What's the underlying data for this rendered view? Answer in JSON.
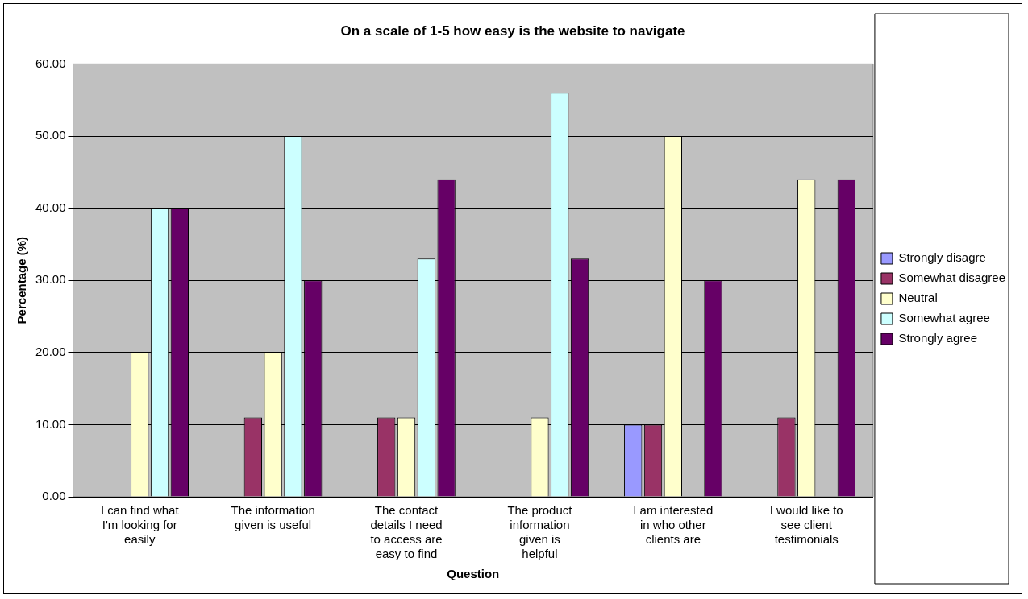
{
  "chart_data": {
    "type": "bar",
    "title": "On a scale of 1-5 how easy is the website to navigate",
    "xlabel": "Question",
    "ylabel": "Percentage (%)",
    "categories": [
      "I can find what I'm looking for easily",
      "The information given is useful",
      "The contact details I need to access are easy to find",
      "The product information given is helpful",
      "I am interested in who other clients are",
      "I would like to see client testimonials"
    ],
    "series": [
      {
        "name": "Strongly disagre",
        "color": "#9999ff",
        "values": [
          0,
          0,
          0,
          0,
          10,
          0
        ]
      },
      {
        "name": "Somewhat disagree",
        "color": "#993366",
        "values": [
          0,
          11,
          11,
          0,
          10,
          11
        ]
      },
      {
        "name": "Neutral",
        "color": "#ffffcc",
        "values": [
          20,
          20,
          11,
          11,
          50,
          44
        ]
      },
      {
        "name": "Somewhat agree",
        "color": "#ccffff",
        "values": [
          40,
          50,
          33,
          56,
          0,
          0
        ]
      },
      {
        "name": "Strongly agree",
        "color": "#660066",
        "values": [
          40,
          30,
          44,
          33,
          30,
          44
        ]
      }
    ],
    "ylim": [
      0,
      60
    ],
    "yticks": [
      {
        "value": 0,
        "label": "0.00"
      },
      {
        "value": 10,
        "label": "10.00"
      },
      {
        "value": 20,
        "label": "20.00"
      },
      {
        "value": 30,
        "label": "30.00"
      },
      {
        "value": 40,
        "label": "40.00"
      },
      {
        "value": 50,
        "label": "50.00"
      },
      {
        "value": 60,
        "label": "60.00"
      }
    ],
    "grid": "y",
    "legend": "right"
  }
}
